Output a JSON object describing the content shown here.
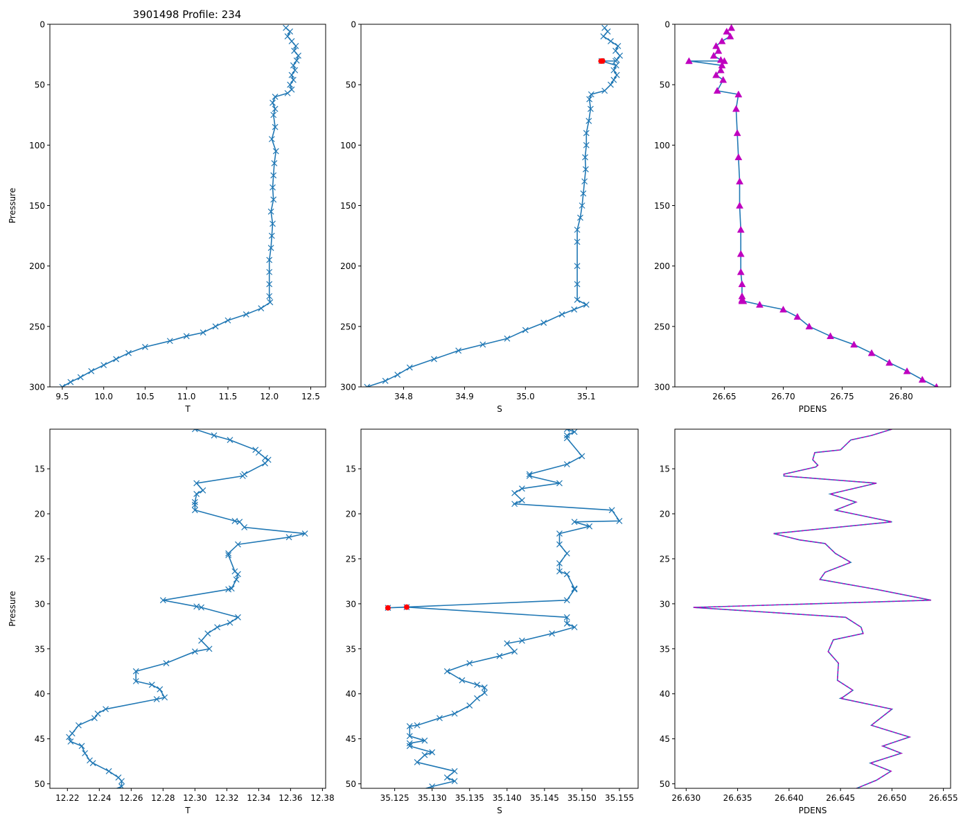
{
  "figure_title": "3901498 Profile: 234",
  "colors": {
    "line": "#1f77b4",
    "magenta": "#bf00bf",
    "red": "#ff0000"
  },
  "chart_data": [
    {
      "type": "line",
      "name": "temperature-full",
      "xlabel": "T",
      "ylabel": "Pressure",
      "xlim": [
        9.35,
        12.68
      ],
      "ylim": [
        300,
        0
      ],
      "xticks": [
        9.5,
        10.0,
        10.5,
        11.0,
        11.5,
        12.0,
        12.5
      ],
      "xticklabels": [
        "9.5",
        "10.0",
        "10.5",
        "11.0",
        "11.5",
        "12.0",
        "12.5"
      ],
      "yticks": [
        0,
        50,
        100,
        150,
        200,
        250,
        300
      ],
      "yticklabels": [
        "0",
        "50",
        "100",
        "150",
        "200",
        "250",
        "300"
      ],
      "series": [
        {
          "name": "T",
          "marker": "x",
          "x": [
            12.2,
            12.25,
            12.22,
            12.27,
            12.32,
            12.3,
            12.35,
            12.33,
            12.29,
            12.31,
            12.27,
            12.29,
            12.25,
            12.27,
            12.22,
            12.07,
            12.04,
            12.07,
            12.05,
            12.07,
            12.03,
            12.08,
            12.06,
            12.05,
            12.04,
            12.05,
            12.02,
            12.04,
            12.03,
            12.02,
            12.0,
            12.0,
            12.0,
            12.0,
            12.01,
            11.9,
            11.72,
            11.5,
            11.35,
            11.2,
            11.0,
            10.8,
            10.5,
            10.3,
            10.15,
            10.0,
            9.85,
            9.72,
            9.6,
            9.5
          ],
          "y": [
            3,
            6,
            10,
            14,
            18,
            22,
            26,
            30,
            34,
            38,
            42,
            46,
            50,
            54,
            57,
            60,
            65,
            70,
            75,
            85,
            95,
            105,
            115,
            125,
            135,
            145,
            155,
            165,
            175,
            185,
            195,
            205,
            215,
            225,
            230,
            235,
            240,
            245,
            250,
            255,
            258,
            262,
            267,
            272,
            277,
            282,
            287,
            292,
            296,
            300
          ]
        }
      ]
    },
    {
      "type": "line",
      "name": "salinity-full",
      "xlabel": "S",
      "ylabel": "",
      "xlim": [
        34.73,
        35.185
      ],
      "ylim": [
        300,
        0
      ],
      "xticks": [
        34.8,
        34.9,
        35.0,
        35.1
      ],
      "xticklabels": [
        "34.8",
        "34.9",
        "35.0",
        "35.1"
      ],
      "yticks": [
        0,
        50,
        100,
        150,
        200,
        250,
        300
      ],
      "yticklabels": [
        "0",
        "50",
        "100",
        "150",
        "200",
        "250",
        "300"
      ],
      "series": [
        {
          "name": "S",
          "marker": "x",
          "x": [
            35.13,
            35.135,
            35.128,
            35.14,
            35.152,
            35.148,
            35.155,
            35.15,
            35.148,
            35.125,
            35.149,
            35.145,
            35.15,
            35.145,
            35.14,
            35.13,
            35.108,
            35.105,
            35.107,
            35.104,
            35.1,
            35.1,
            35.098,
            35.099,
            35.097,
            35.095,
            35.093,
            35.09,
            35.085,
            35.085,
            35.085,
            35.085,
            35.085,
            35.1,
            35.08,
            35.06,
            35.03,
            35.0,
            34.97,
            34.93,
            34.89,
            34.85,
            34.81,
            34.79,
            34.77,
            34.74
          ],
          "y": [
            3,
            6,
            10,
            14,
            18,
            22,
            26,
            29.5,
            30.4,
            30.4,
            34,
            38,
            42,
            46,
            50,
            55,
            58,
            62,
            70,
            80,
            90,
            100,
            110,
            120,
            130,
            140,
            150,
            160,
            170,
            180,
            200,
            215,
            228,
            232,
            236,
            240,
            247,
            253,
            260,
            265,
            270,
            277,
            284,
            290,
            295,
            300
          ]
        }
      ],
      "highlight": {
        "name": "flagged",
        "x": [
          35.1241,
          35.1266
        ],
        "y": [
          30.45,
          30.37
        ]
      }
    },
    {
      "type": "line",
      "name": "density-full",
      "xlabel": "PDENS",
      "ylabel": "",
      "xlim": [
        26.608,
        26.842
      ],
      "ylim": [
        300,
        0
      ],
      "xticks": [
        26.65,
        26.7,
        26.75,
        26.8
      ],
      "xticklabels": [
        "26.65",
        "26.70",
        "26.75",
        "26.80"
      ],
      "yticks": [
        0,
        50,
        100,
        150,
        200,
        250,
        300
      ],
      "yticklabels": [
        "0",
        "50",
        "100",
        "150",
        "200",
        "250",
        "300"
      ],
      "series": [
        {
          "name": "PDENS",
          "marker": "triangle",
          "x": [
            26.656,
            26.652,
            26.655,
            26.648,
            26.643,
            26.645,
            26.641,
            26.647,
            26.65,
            26.62,
            26.648,
            26.647,
            26.643,
            26.649,
            26.644,
            26.662,
            26.66,
            26.661,
            26.662,
            26.663,
            26.663,
            26.664,
            26.664,
            26.664,
            26.665,
            26.665,
            26.665,
            26.665,
            26.666,
            26.666,
            26.666,
            26.666,
            26.666,
            26.68,
            26.7,
            26.712,
            26.722,
            26.74,
            26.76,
            26.775,
            26.79,
            26.805,
            26.818,
            26.83
          ],
          "y": [
            3,
            6,
            10,
            14,
            18,
            22,
            26,
            29.5,
            30.4,
            30.4,
            34,
            38,
            42,
            46,
            55,
            58,
            70,
            90,
            110,
            130,
            150,
            170,
            190,
            205,
            215,
            225,
            228,
            229,
            229,
            229,
            229,
            229,
            229,
            232,
            236,
            242,
            250,
            258,
            265,
            272,
            280,
            287,
            294,
            300
          ]
        }
      ]
    },
    {
      "type": "line",
      "name": "temperature-zoom",
      "xlabel": "T",
      "ylabel": "Pressure",
      "xlim": [
        12.209,
        12.382
      ],
      "ylim": [
        50.5,
        10.6
      ],
      "xticks": [
        12.22,
        12.24,
        12.26,
        12.28,
        12.3,
        12.32,
        12.34,
        12.36,
        12.38
      ],
      "xticklabels": [
        "12.22",
        "12.24",
        "12.26",
        "12.28",
        "12.30",
        "12.32",
        "12.34",
        "12.36",
        "12.38"
      ],
      "yticks": [
        15,
        20,
        25,
        30,
        35,
        40,
        45,
        50
      ],
      "yticklabels": [
        "15",
        "20",
        "25",
        "30",
        "35",
        "40",
        "45",
        "50"
      ],
      "series": [
        {
          "name": "T",
          "marker": "x",
          "x": [
            12.3,
            12.312,
            12.322,
            12.338,
            12.34,
            12.344,
            12.346,
            12.344,
            12.331,
            12.33,
            12.301,
            12.305,
            12.301,
            12.3,
            12.3,
            12.3,
            12.325,
            12.328,
            12.331,
            12.369,
            12.359,
            12.327,
            12.321,
            12.321,
            12.325,
            12.327,
            12.326,
            12.323,
            12.321,
            12.28,
            12.301,
            12.304,
            12.327,
            12.322,
            12.314,
            12.308,
            12.304,
            12.309,
            12.3,
            12.282,
            12.263,
            12.263,
            12.273,
            12.278,
            12.281,
            12.276,
            12.244,
            12.239,
            12.237,
            12.227,
            12.223,
            12.221,
            12.222,
            12.229,
            12.231,
            12.234,
            12.236,
            12.246,
            12.252,
            12.254,
            12.254,
            12.244
          ],
          "y": [
            10.6,
            11.3,
            11.8,
            12.9,
            13.2,
            13.8,
            14.0,
            14.4,
            15.6,
            15.8,
            16.6,
            17.4,
            17.8,
            18.7,
            19.0,
            19.6,
            20.8,
            20.9,
            21.5,
            22.2,
            22.6,
            23.4,
            24.4,
            24.6,
            26.4,
            26.7,
            27.3,
            28.3,
            28.4,
            29.6,
            30.3,
            30.4,
            31.5,
            32.1,
            32.6,
            33.3,
            34.1,
            35.0,
            35.3,
            36.6,
            37.5,
            38.6,
            39.0,
            39.5,
            40.4,
            40.6,
            41.7,
            42.2,
            42.7,
            43.5,
            44.4,
            44.8,
            45.3,
            45.8,
            46.6,
            47.4,
            47.7,
            48.6,
            49.3,
            49.7,
            50.3,
            51.0
          ]
        }
      ]
    },
    {
      "type": "line",
      "name": "salinity-zoom",
      "xlabel": "S",
      "ylabel": "",
      "xlim": [
        35.1205,
        35.1575
      ],
      "ylim": [
        50.5,
        10.6
      ],
      "xticks": [
        35.125,
        35.13,
        35.135,
        35.14,
        35.145,
        35.15,
        35.155
      ],
      "xticklabels": [
        "35.125",
        "35.130",
        "35.135",
        "35.140",
        "35.145",
        "35.150",
        "35.155"
      ],
      "yticks": [
        15,
        20,
        25,
        30,
        35,
        40,
        45,
        50
      ],
      "yticklabels": [
        "15",
        "20",
        "25",
        "30",
        "35",
        "40",
        "45",
        "50"
      ],
      "series": [
        {
          "name": "S",
          "marker": "x",
          "x": [
            35.148,
            35.149,
            35.148,
            35.148,
            35.15,
            35.148,
            35.143,
            35.143,
            35.147,
            35.142,
            35.141,
            35.142,
            35.141,
            35.154,
            35.155,
            35.149,
            35.151,
            35.147,
            35.147,
            35.148,
            35.147,
            35.147,
            35.148,
            35.149,
            35.149,
            35.148,
            35.1241,
            35.1266,
            35.148,
            35.148,
            35.149,
            35.146,
            35.142,
            35.14,
            35.141,
            35.139,
            35.135,
            35.132,
            35.134,
            35.136,
            35.137,
            35.137,
            35.136,
            35.135,
            35.133,
            35.131,
            35.128,
            35.127,
            35.127,
            35.129,
            35.127,
            35.127,
            35.13,
            35.129,
            35.128,
            35.133,
            35.132,
            35.133,
            35.13,
            35.128
          ],
          "y": [
            10.6,
            10.9,
            11.3,
            11.6,
            13.6,
            14.5,
            15.6,
            15.8,
            16.6,
            17.2,
            17.7,
            18.5,
            18.9,
            19.6,
            20.8,
            20.9,
            21.4,
            22.2,
            23.4,
            24.4,
            25.5,
            26.4,
            26.7,
            28.3,
            28.4,
            29.6,
            30.45,
            30.37,
            31.5,
            32.2,
            32.6,
            33.3,
            34.1,
            34.4,
            35.3,
            35.8,
            36.6,
            37.5,
            38.5,
            39.0,
            39.3,
            39.9,
            40.5,
            41.3,
            42.2,
            42.7,
            43.5,
            43.6,
            44.7,
            45.2,
            45.5,
            45.8,
            46.5,
            46.8,
            47.6,
            48.6,
            49.3,
            49.7,
            50.3,
            50.8
          ]
        }
      ],
      "highlight": {
        "name": "flagged",
        "x": [
          35.1241,
          35.1266
        ],
        "y": [
          30.45,
          30.37
        ]
      }
    },
    {
      "type": "line",
      "name": "density-zoom",
      "xlabel": "PDENS",
      "ylabel": "",
      "xlim": [
        26.6289,
        26.6557
      ],
      "ylim": [
        50.5,
        10.6
      ],
      "xticks": [
        26.63,
        26.635,
        26.64,
        26.645,
        26.65,
        26.655
      ],
      "xticklabels": [
        "26.630",
        "26.635",
        "26.640",
        "26.645",
        "26.650",
        "26.655"
      ],
      "yticks": [
        15,
        20,
        25,
        30,
        35,
        40,
        45,
        50
      ],
      "yticklabels": [
        "15",
        "20",
        "25",
        "30",
        "35",
        "40",
        "45",
        "50"
      ],
      "series": [
        {
          "name": "PDENS",
          "marker": "",
          "x": [
            26.65,
            26.648,
            26.646,
            26.645,
            26.6425,
            26.6423,
            26.6428,
            26.6426,
            26.6395,
            26.6395,
            26.6485,
            26.644,
            26.6465,
            26.6445,
            26.65,
            26.6385,
            26.641,
            26.6435,
            26.6445,
            26.646,
            26.6435,
            26.643,
            26.6435,
            26.6485,
            26.6538,
            26.6307,
            26.6455,
            26.647,
            26.6472,
            26.6443,
            26.6438,
            26.6448,
            26.6447,
            26.6462,
            26.6452,
            26.645,
            26.65,
            26.648,
            26.6517,
            26.6491,
            26.6509,
            26.6479,
            26.6499,
            26.6485,
            26.6455
          ],
          "y": [
            10.6,
            11.3,
            11.8,
            12.9,
            13.2,
            14.0,
            14.6,
            14.8,
            15.6,
            15.8,
            16.6,
            17.8,
            18.7,
            19.6,
            20.9,
            22.2,
            22.9,
            23.3,
            24.4,
            25.4,
            26.5,
            27.3,
            27.4,
            28.4,
            29.6,
            30.4,
            31.5,
            32.6,
            33.3,
            34.0,
            35.3,
            36.6,
            38.5,
            39.6,
            40.4,
            40.5,
            41.7,
            43.5,
            44.8,
            45.8,
            46.6,
            47.7,
            48.6,
            49.6,
            51.0
          ]
        }
      ]
    }
  ]
}
